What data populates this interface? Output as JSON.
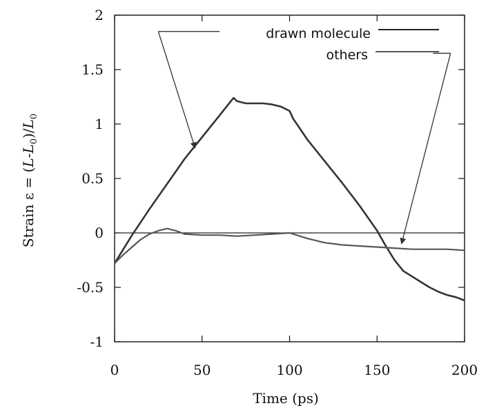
{
  "chart_data": {
    "type": "line",
    "xlabel": "Time (ps)",
    "ylabel_parts": [
      "Strain ε = (",
      "L",
      "-",
      "L",
      "0",
      ")/",
      "L",
      "0"
    ],
    "xlim": [
      0,
      200
    ],
    "ylim": [
      -1,
      2
    ],
    "xticks": [
      0,
      50,
      100,
      150,
      200
    ],
    "yticks": [
      -1,
      -0.5,
      0,
      0.5,
      1,
      1.5,
      2
    ],
    "xtick_labels": [
      "0",
      "50",
      "100",
      "150",
      "200"
    ],
    "ytick_labels": [
      "-1",
      "-0.5",
      "0",
      "0.5",
      "1",
      "1.5",
      "2"
    ],
    "grid": false,
    "legend_position": "top-right",
    "series": [
      {
        "name": "drawn molecule",
        "x": [
          0,
          5,
          10,
          20,
          30,
          40,
          50,
          60,
          67,
          68,
          70,
          75,
          80,
          85,
          90,
          95,
          100,
          102,
          105,
          110,
          120,
          130,
          140,
          150,
          155,
          160,
          165,
          170,
          175,
          180,
          185,
          190,
          195,
          200
        ],
        "y": [
          -0.28,
          -0.15,
          -0.02,
          0.22,
          0.45,
          0.68,
          0.88,
          1.08,
          1.22,
          1.24,
          1.21,
          1.19,
          1.19,
          1.19,
          1.18,
          1.16,
          1.12,
          1.05,
          0.98,
          0.86,
          0.66,
          0.46,
          0.25,
          0.02,
          -0.12,
          -0.25,
          -0.35,
          -0.4,
          -0.45,
          -0.5,
          -0.54,
          -0.57,
          -0.59,
          -0.62
        ]
      },
      {
        "name": "others",
        "x": [
          0,
          5,
          10,
          15,
          20,
          25,
          30,
          35,
          40,
          50,
          60,
          70,
          80,
          90,
          100,
          110,
          120,
          130,
          140,
          150,
          160,
          170,
          180,
          190,
          200
        ],
        "y": [
          -0.28,
          -0.2,
          -0.13,
          -0.06,
          -0.01,
          0.02,
          0.04,
          0.02,
          -0.01,
          -0.02,
          -0.02,
          -0.03,
          -0.02,
          -0.01,
          0.0,
          -0.05,
          -0.09,
          -0.11,
          -0.12,
          -0.13,
          -0.14,
          -0.15,
          -0.15,
          -0.15,
          -0.16
        ]
      }
    ],
    "reference_line_y": 0,
    "annotations": [
      {
        "from": [
          25,
          1.85
        ],
        "to": [
          46,
          0.78
        ],
        "tail": [
          60,
          1.85
        ]
      },
      {
        "from": [
          192,
          1.65
        ],
        "to": [
          164,
          -0.1
        ],
        "tail": [
          182,
          1.65
        ]
      }
    ]
  }
}
